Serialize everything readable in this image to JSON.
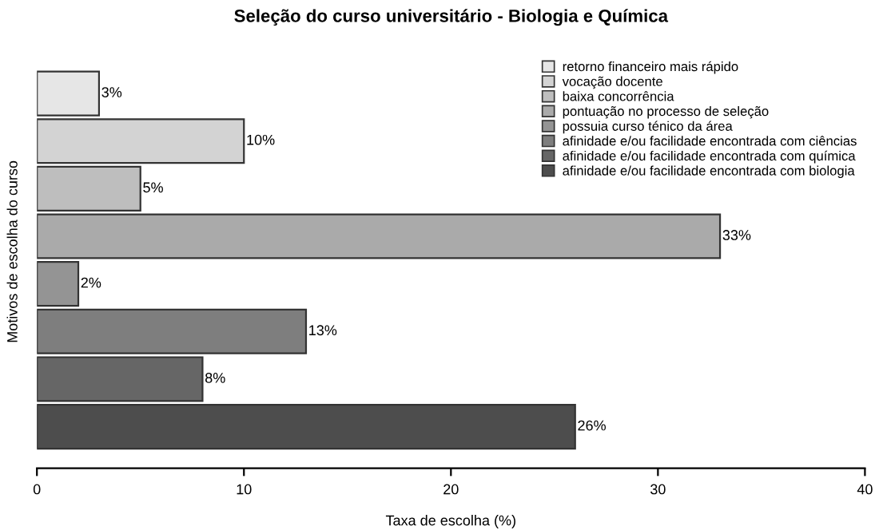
{
  "chart_data": {
    "type": "bar",
    "orientation": "horizontal",
    "stacked": true,
    "title": "Seleção do curso universitário - Biologia e Química",
    "xlabel": "Taxa de escolha (%)",
    "ylabel": "Motivos de escolha do curso",
    "categories": [
      null,
      null,
      null,
      null,
      null,
      null,
      null,
      null
    ],
    "series": [
      {
        "name": "retorno financeiro mais rápido",
        "color": "#e6e6e6",
        "values": [
          3,
          null,
          null,
          null,
          null,
          null,
          null,
          null
        ],
        "value_labels": [
          "3%",
          null,
          null,
          null,
          null,
          null,
          null,
          null
        ]
      },
      {
        "name": "vocação docente",
        "color": "#d3d3d3",
        "values": [
          null,
          10,
          null,
          null,
          null,
          null,
          null,
          null
        ],
        "value_labels": [
          null,
          "10%",
          null,
          null,
          null,
          null,
          null,
          null
        ]
      },
      {
        "name": "baixa concorrência",
        "color": "#bebebe",
        "values": [
          null,
          null,
          5,
          null,
          null,
          null,
          null,
          null
        ],
        "value_labels": [
          null,
          null,
          "5%",
          null,
          null,
          null,
          null,
          null
        ]
      },
      {
        "name": "pontuação no processo de seleção",
        "color": "#aaaaaa",
        "values": [
          null,
          null,
          null,
          33,
          null,
          null,
          null,
          null
        ],
        "value_labels": [
          null,
          null,
          null,
          "33%",
          null,
          null,
          null,
          null
        ]
      },
      {
        "name": "possuia curso ténico da área",
        "color": "#949494",
        "values": [
          null,
          null,
          null,
          null,
          2,
          null,
          null,
          null
        ],
        "value_labels": [
          null,
          null,
          null,
          null,
          "2%",
          null,
          null,
          null
        ]
      },
      {
        "name": "afinidade e/ou facilidade encontrada com ciências",
        "color": "#7e7e7e",
        "values": [
          null,
          null,
          null,
          null,
          null,
          13,
          null,
          null
        ],
        "value_labels": [
          null,
          null,
          null,
          null,
          null,
          "13%",
          null,
          null
        ]
      },
      {
        "name": "afinidade e/ou facilidade encontrada com química",
        "color": "#666666",
        "values": [
          null,
          null,
          null,
          null,
          null,
          null,
          8,
          null
        ],
        "value_labels": [
          null,
          null,
          null,
          null,
          null,
          null,
          "8%",
          null
        ]
      },
      {
        "name": "afinidade e/ou facilidade encontrada com biologia",
        "color": "#4d4d4d",
        "values": [
          null,
          null,
          null,
          null,
          null,
          null,
          null,
          26
        ],
        "value_labels": [
          null,
          null,
          null,
          null,
          null,
          null,
          null,
          "26%"
        ]
      }
    ],
    "xlim": [
      0,
      40
    ],
    "xticks": [
      0,
      10,
      20,
      30,
      40
    ],
    "legend": "top right",
    "grid": false
  }
}
